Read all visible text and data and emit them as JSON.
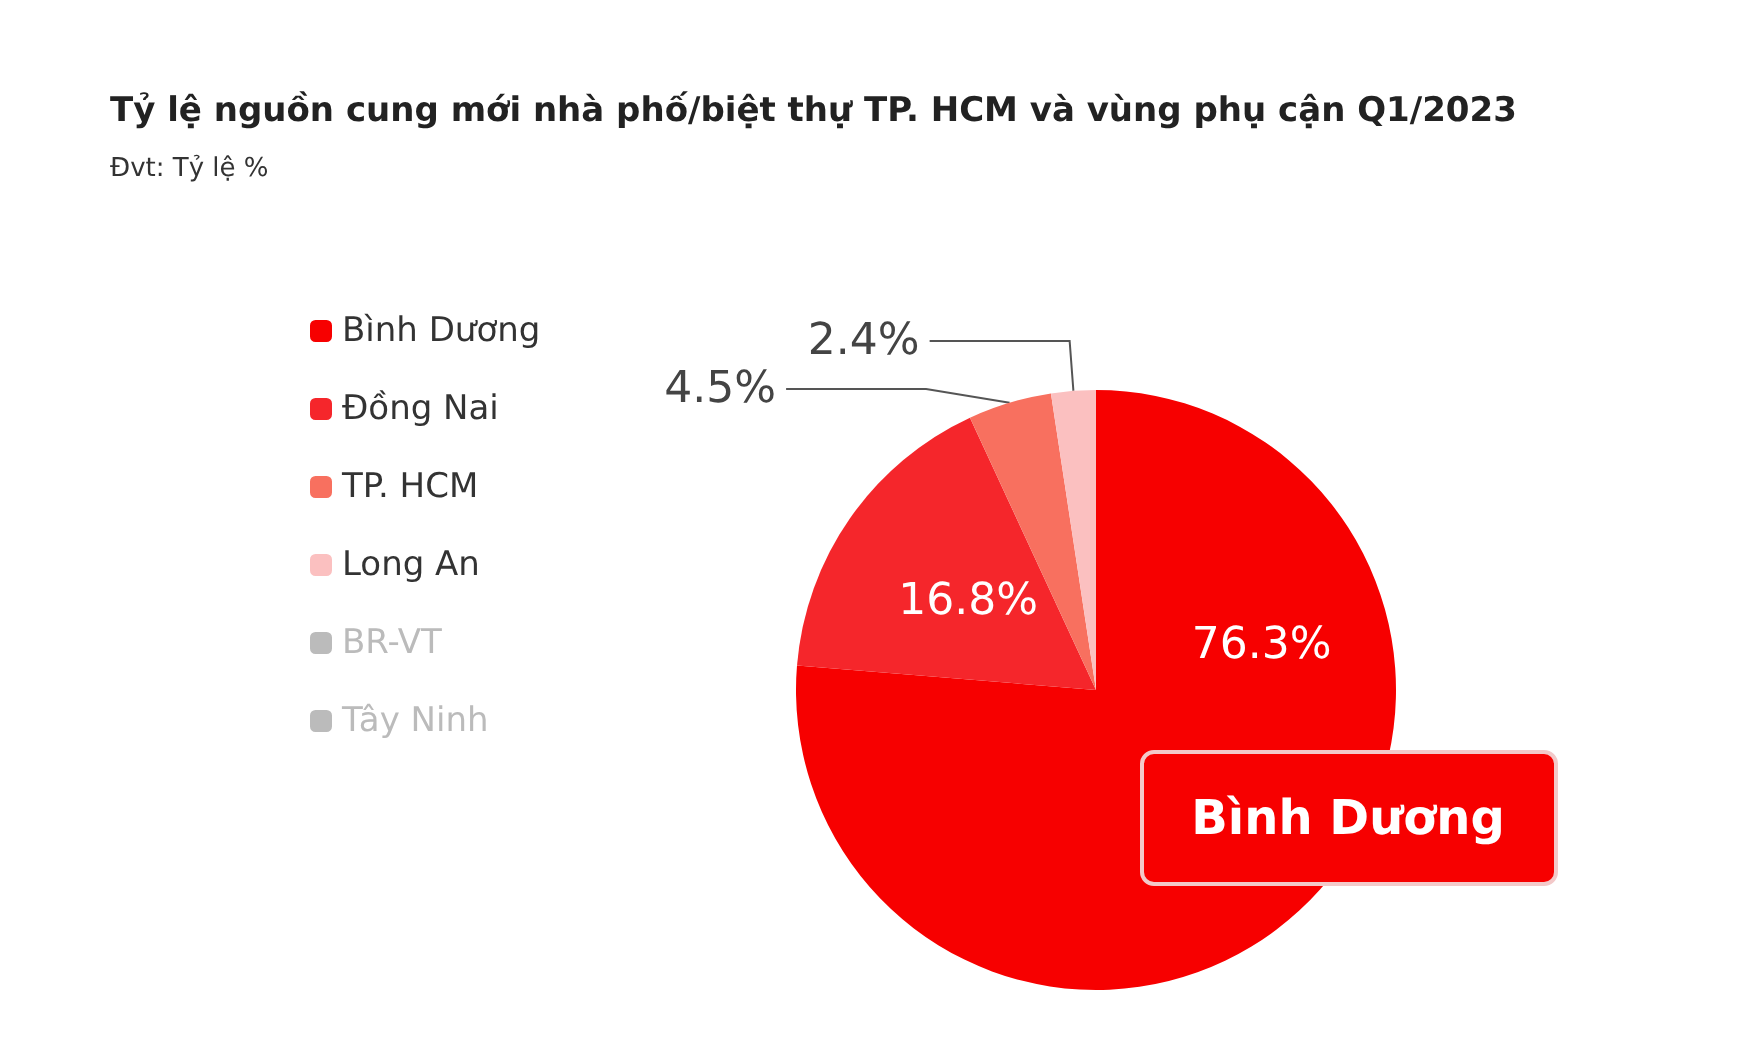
{
  "chart_data": {
    "type": "pie",
    "title": "Tỷ lệ nguồn cung mới nhà phố/biệt thự TP. HCM và vùng phụ cận Q1/2023",
    "subtitle": "Đvt: Tỷ lệ %",
    "categories": [
      "Bình Dương",
      "Đồng Nai",
      "TP. HCM",
      "Long An",
      "BR-VT",
      "Tây Ninh"
    ],
    "values": [
      76.3,
      16.8,
      4.5,
      2.4,
      null,
      null
    ],
    "value_labels": [
      "76.3%",
      "16.8%",
      "4.5%",
      "2.4%",
      null,
      null
    ],
    "colors": [
      "#f70000",
      "#f5262b",
      "#f8705f",
      "#fbc0c0",
      "#c8c8c8",
      "#c8c8c8"
    ],
    "annotations": [
      "Bình Dương"
    ],
    "legend": "left"
  }
}
